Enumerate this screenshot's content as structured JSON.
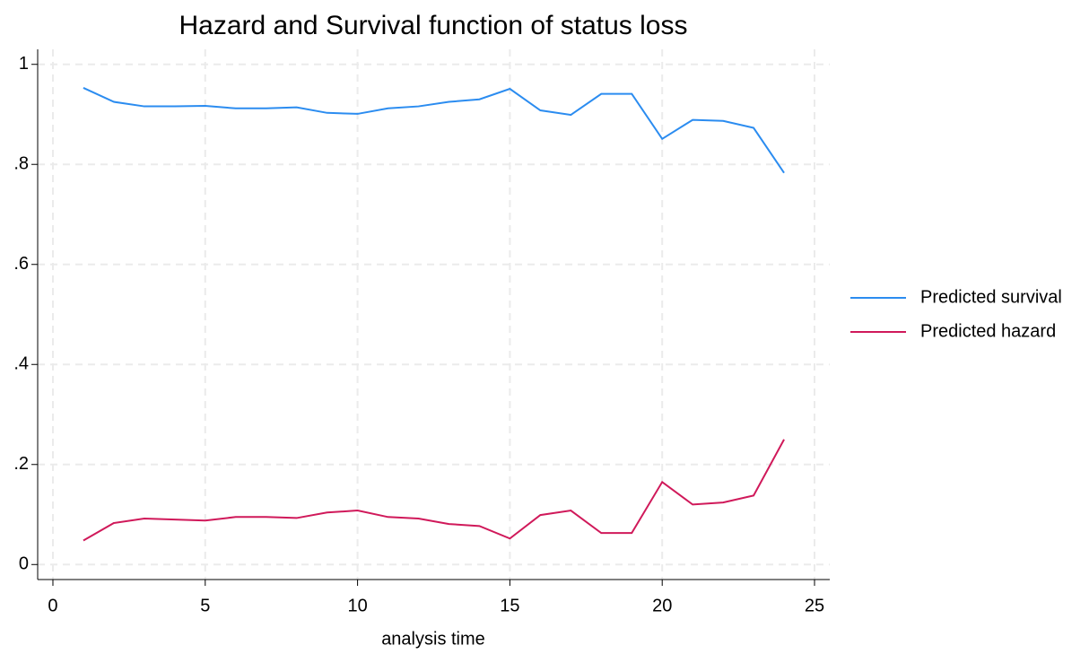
{
  "chart_data": {
    "type": "line",
    "title": "Hazard and Survival function of status loss",
    "x_label": "analysis time",
    "x": [
      1,
      2,
      3,
      4,
      5,
      6,
      7,
      8,
      9,
      10,
      11,
      12,
      13,
      14,
      15,
      16,
      17,
      18,
      19,
      20,
      21,
      22,
      23,
      24
    ],
    "series": [
      {
        "name": "Predicted survival",
        "color": "#2b8cf0",
        "values": [
          0.953,
          0.925,
          0.916,
          0.916,
          0.917,
          0.912,
          0.912,
          0.914,
          0.903,
          0.901,
          0.912,
          0.916,
          0.925,
          0.93,
          0.951,
          0.908,
          0.899,
          0.941,
          0.941,
          0.851,
          0.889,
          0.887,
          0.873,
          0.783
        ]
      },
      {
        "name": "Predicted hazard",
        "color": "#d0195a",
        "values": [
          0.048,
          0.083,
          0.092,
          0.09,
          0.088,
          0.095,
          0.095,
          0.093,
          0.104,
          0.108,
          0.095,
          0.092,
          0.081,
          0.077,
          0.052,
          0.099,
          0.108,
          0.063,
          0.063,
          0.165,
          0.12,
          0.124,
          0.138,
          0.25
        ]
      }
    ],
    "xlim": [
      -0.5,
      25.5
    ],
    "xticks": [
      0,
      5,
      10,
      15,
      20,
      25
    ],
    "ylim": [
      -0.03,
      1.03
    ],
    "yticks": [
      0,
      {
        "value": 0.2,
        "label": ".2"
      },
      {
        "value": 0.4,
        "label": ".4"
      },
      {
        "value": 0.6,
        "label": ".6"
      },
      {
        "value": 0.8,
        "label": ".8"
      },
      1
    ],
    "grid": true,
    "legend": "right"
  }
}
